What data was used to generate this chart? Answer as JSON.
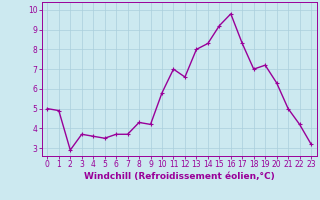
{
  "x": [
    0,
    1,
    2,
    3,
    4,
    5,
    6,
    7,
    8,
    9,
    10,
    11,
    12,
    13,
    14,
    15,
    16,
    17,
    18,
    19,
    20,
    21,
    22,
    23
  ],
  "y": [
    5.0,
    4.9,
    2.9,
    3.7,
    3.6,
    3.5,
    3.7,
    3.7,
    4.3,
    4.2,
    5.8,
    7.0,
    6.6,
    8.0,
    8.3,
    9.2,
    9.8,
    8.3,
    7.0,
    7.2,
    6.3,
    5.0,
    4.2,
    3.2
  ],
  "line_color": "#990099",
  "marker": "+",
  "marker_size": 3,
  "xlabel": "Windchill (Refroidissement éolien,°C)",
  "xlabel_fontsize": 6.5,
  "ylabel_ticks": [
    3,
    4,
    5,
    6,
    7,
    8,
    9,
    10
  ],
  "xtick_labels": [
    "0",
    "1",
    "2",
    "3",
    "4",
    "5",
    "6",
    "7",
    "8",
    "9",
    "10",
    "11",
    "12",
    "13",
    "14",
    "15",
    "16",
    "17",
    "18",
    "19",
    "20",
    "21",
    "22",
    "23"
  ],
  "ylim": [
    2.6,
    10.4
  ],
  "xlim": [
    -0.5,
    23.5
  ],
  "bg_color": "#cce9f0",
  "grid_color": "#aacfdc",
  "tick_fontsize": 5.5,
  "line_width": 1.0
}
